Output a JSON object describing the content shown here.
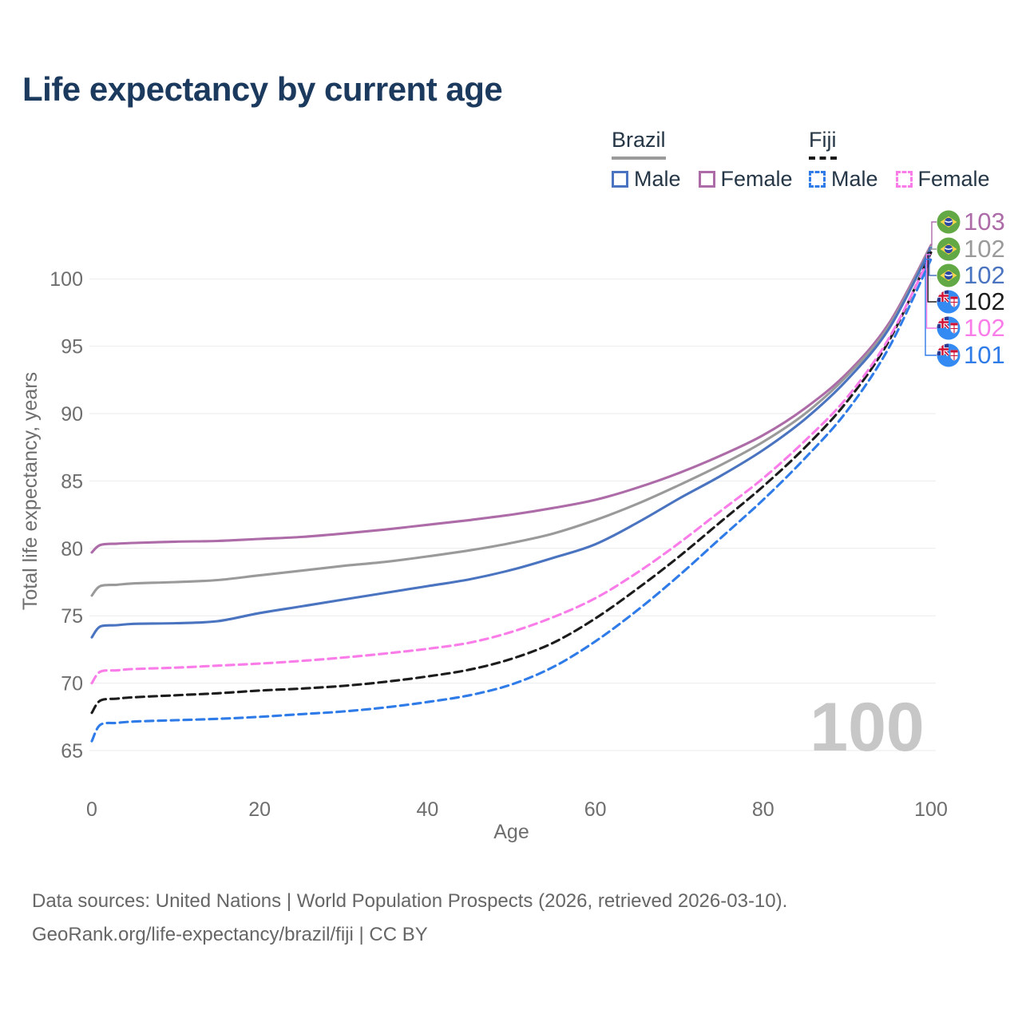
{
  "title": "Life expectancy by current age",
  "legend": {
    "groups": [
      {
        "country": "Brazil",
        "line_style": "solid",
        "underline_color": "#9b9b9b",
        "items": [
          {
            "label": "Male",
            "color": "#4a74c0",
            "dash": false
          },
          {
            "label": "Female",
            "color": "#ad6ba8",
            "dash": false
          }
        ]
      },
      {
        "country": "Fiji",
        "line_style": "dashed",
        "underline_color": "#1a1a1a",
        "items": [
          {
            "label": "Male",
            "color": "#2f7be8",
            "dash": true
          },
          {
            "label": "Female",
            "color": "#f97ce9",
            "dash": true
          }
        ]
      }
    ]
  },
  "watermark": "100",
  "footer": {
    "line1": "Data sources: United Nations | World Population Prospects (2026, retrieved 2026-03-10).",
    "line2": "GeoRank.org/life-expectancy/brazil/fiji | CC BY"
  },
  "chart_data": {
    "type": "line",
    "title": "Life expectancy by current age",
    "xlabel": "Age",
    "ylabel": "Total life expectancy, years",
    "xlim": [
      0,
      100
    ],
    "ylim": [
      65,
      103
    ],
    "x_ticks": [
      0,
      20,
      40,
      60,
      80,
      100
    ],
    "y_ticks": [
      65,
      70,
      75,
      80,
      85,
      90,
      95,
      100
    ],
    "grid": "horizontal",
    "grid_color": "#ebebeb",
    "axis_text_color": "#6e6e6e",
    "watermark_color": "#c7c7c7",
    "x": [
      0,
      1,
      3,
      5,
      10,
      15,
      20,
      25,
      30,
      35,
      40,
      45,
      50,
      55,
      60,
      65,
      70,
      75,
      80,
      85,
      90,
      95,
      100
    ],
    "series": [
      {
        "name": "Brazil Female",
        "country": "Brazil",
        "sex": "Female",
        "color": "#ad6ba8",
        "dash": false,
        "flag": "brazil",
        "end_label": "103",
        "values": [
          79.7,
          80.25,
          80.35,
          80.4,
          80.5,
          80.55,
          80.7,
          80.85,
          81.1,
          81.4,
          81.75,
          82.1,
          82.5,
          83.0,
          83.6,
          84.5,
          85.6,
          86.9,
          88.4,
          90.4,
          93.0,
          96.7,
          102.5
        ]
      },
      {
        "name": "Brazil",
        "country": "Brazil",
        "sex": "All",
        "color": "#9a9a9a",
        "dash": false,
        "flag": "brazil",
        "end_label": "102",
        "values": [
          76.5,
          77.2,
          77.3,
          77.4,
          77.5,
          77.65,
          78.0,
          78.35,
          78.7,
          79.0,
          79.4,
          79.85,
          80.4,
          81.1,
          82.1,
          83.3,
          84.7,
          86.2,
          87.9,
          90.0,
          92.8,
          96.5,
          102.4
        ]
      },
      {
        "name": "Brazil Male",
        "country": "Brazil",
        "sex": "Male",
        "color": "#4a74c0",
        "dash": false,
        "flag": "brazil",
        "end_label": "102",
        "values": [
          73.4,
          74.2,
          74.3,
          74.4,
          74.45,
          74.6,
          75.2,
          75.7,
          76.2,
          76.7,
          77.2,
          77.7,
          78.4,
          79.3,
          80.3,
          81.9,
          83.7,
          85.4,
          87.3,
          89.6,
          92.5,
          96.3,
          102.3
        ]
      },
      {
        "name": "Fiji",
        "country": "Fiji",
        "sex": "All",
        "color": "#1c1c1c",
        "dash": true,
        "flag": "fiji",
        "end_label": "102",
        "values": [
          67.8,
          68.7,
          68.85,
          68.95,
          69.1,
          69.25,
          69.45,
          69.6,
          69.8,
          70.1,
          70.5,
          71.0,
          71.8,
          73.0,
          74.8,
          77.0,
          79.4,
          82.0,
          84.6,
          87.5,
          90.9,
          95.4,
          101.95
        ]
      },
      {
        "name": "Fiji Female",
        "country": "Fiji",
        "sex": "Female",
        "color": "#f97ce9",
        "dash": true,
        "flag": "fiji",
        "end_label": "102",
        "values": [
          70.0,
          70.85,
          70.95,
          71.05,
          71.15,
          71.3,
          71.45,
          71.65,
          71.9,
          72.2,
          72.55,
          73.0,
          73.8,
          74.9,
          76.3,
          78.2,
          80.4,
          82.8,
          85.2,
          88.0,
          91.2,
          95.6,
          101.8
        ]
      },
      {
        "name": "Fiji Male",
        "country": "Fiji",
        "sex": "Male",
        "color": "#2f7be8",
        "dash": true,
        "flag": "fiji",
        "end_label": "101",
        "values": [
          65.7,
          66.9,
          67.05,
          67.15,
          67.25,
          67.35,
          67.5,
          67.7,
          67.9,
          68.2,
          68.6,
          69.1,
          69.9,
          71.2,
          73.1,
          75.4,
          78.0,
          80.8,
          83.6,
          86.7,
          90.2,
          94.9,
          101.45
        ]
      }
    ]
  }
}
